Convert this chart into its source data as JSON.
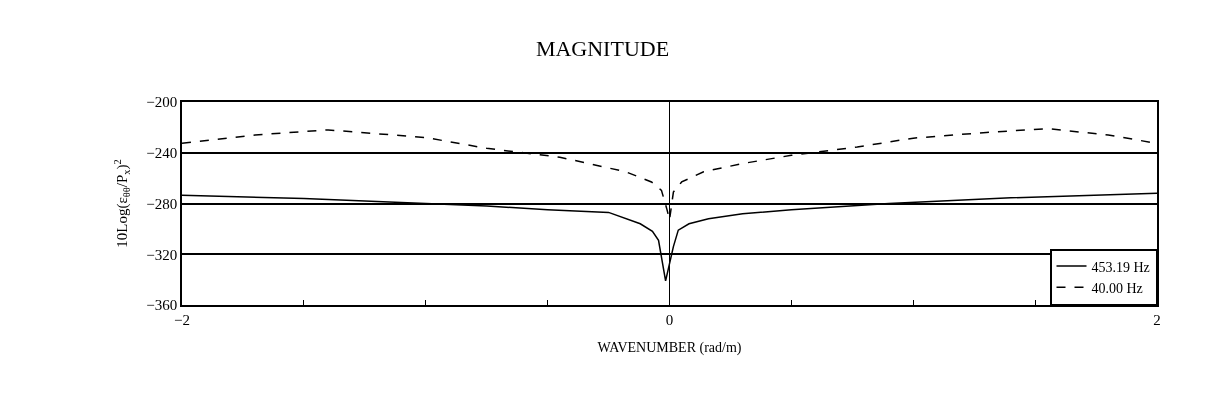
{
  "chart_data": {
    "type": "line",
    "title": "MAGNITUDE",
    "xlabel": "WAVENUMBER (rad/m)",
    "ylabel": "10Log(ε$_{θθ}$/P$_{x}$)$^{2}$",
    "xlim": [
      -2,
      2
    ],
    "ylim": [
      -360,
      -200
    ],
    "xticks": [
      -2,
      {
        "value": -1.5,
        "label": null
      },
      {
        "value": -1,
        "label": null
      },
      {
        "value": -0.5,
        "label": null
      },
      0,
      {
        "value": 0.5,
        "label": null
      },
      {
        "value": 1,
        "label": null
      },
      {
        "value": 1.5,
        "label": null
      },
      2
    ],
    "yticks": [
      -200,
      -240,
      -280,
      -320,
      -360
    ],
    "grid": "y",
    "legend": "bottom right",
    "ref_lines": [
      {
        "axis": "x",
        "value": 0,
        "color": "#000000"
      }
    ],
    "series": [
      {
        "name": "453.19 Hz",
        "color": "#000000",
        "line_style": "solid",
        "x": [
          -2,
          -1.5,
          -1,
          -0.75,
          -0.5,
          -0.25,
          -0.12,
          -0.07,
          -0.045,
          -0.016,
          0.016,
          0.036,
          0.08,
          0.16,
          0.3,
          0.5,
          0.9,
          1.4,
          2
        ],
        "values": [
          -273.5,
          -276,
          -280,
          -282,
          -285,
          -287,
          -296,
          -302,
          -309,
          -341,
          -314,
          -301,
          -296,
          -292,
          -288,
          -285,
          -280,
          -275.5,
          -272
        ]
      },
      {
        "name": "40.00 Hz",
        "color": "#000000",
        "line_style": "dashed",
        "x": [
          -2,
          -1.7,
          -1.4,
          -1.0,
          -0.75,
          -0.45,
          -0.18,
          -0.074,
          -0.033,
          -0.01,
          0,
          0.016,
          0.05,
          0.14,
          0.3,
          0.5,
          0.77,
          1.0,
          1.3,
          1.55,
          1.8,
          2
        ],
        "values": [
          -232.6,
          -226,
          -222,
          -228,
          -236.5,
          -243.5,
          -255,
          -263,
          -269.6,
          -285,
          -293,
          -271,
          -263,
          -255,
          -248.5,
          -242,
          -235.5,
          -228.5,
          -224,
          -221,
          -226,
          -232.6
        ]
      }
    ]
  }
}
